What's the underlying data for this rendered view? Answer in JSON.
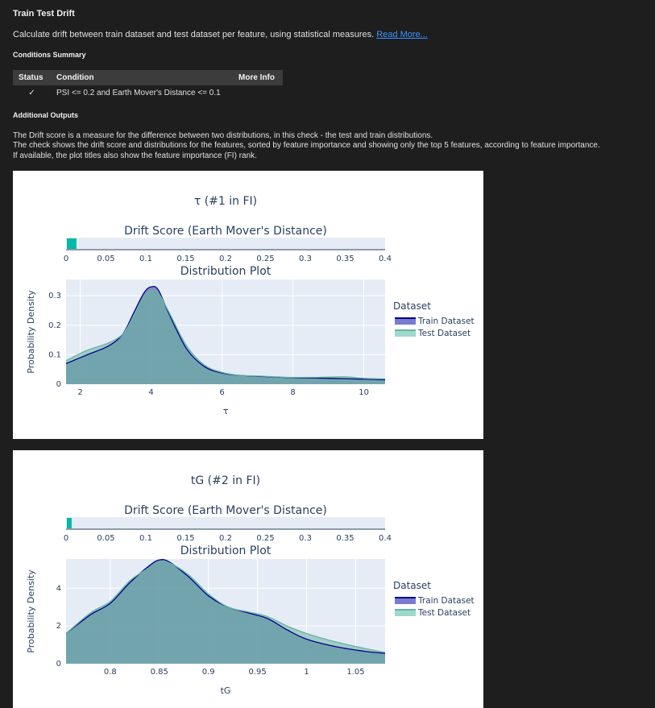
{
  "header": {
    "title": "Train Test Drift",
    "description": "Calculate drift between train dataset and test dataset per feature, using statistical measures.",
    "read_more": "Read More..."
  },
  "conditions": {
    "heading": "Conditions Summary",
    "columns": [
      "Status",
      "Condition",
      "More Info"
    ],
    "rows": [
      {
        "status": "✓",
        "condition": "PSI <= 0.2 and Earth Mover's Distance <= 0.1",
        "more_info": ""
      }
    ]
  },
  "additional": {
    "heading": "Additional Outputs",
    "lines": [
      "The Drift score is a measure for the difference between two distributions, in this check - the test and train distributions.",
      "The check shows the drift score and distributions for the features, sorted by feature importance and showing only the top 5 features, according to feature importance.",
      "If available, the plot titles also show the feature importance (FI) rank."
    ]
  },
  "colors": {
    "train": "#00008b",
    "test": "#69b3a2",
    "overlap_fill": "#5c86a3",
    "drift_bar": "#01b8aa",
    "plot_bg": "#e5ecf6"
  },
  "chart_data": [
    {
      "type": "area",
      "title": "τ (#1 in FI)",
      "drift": {
        "title": "Drift Score (Earth Mover's Distance)",
        "value": 0.012,
        "range": [
          0,
          0.4
        ],
        "ticks": [
          "0",
          "0.05",
          "0.1",
          "0.15",
          "0.2",
          "0.25",
          "0.3",
          "0.35",
          "0.4"
        ]
      },
      "dist_title": "Distribution Plot",
      "xlabel": "τ",
      "ylabel": "Probability Density",
      "xlim": [
        1.6,
        10.6
      ],
      "ylim": [
        0,
        0.355
      ],
      "xticks": [
        2,
        4,
        6,
        8,
        10
      ],
      "xticklabels": [
        "2",
        "4",
        "6",
        "8",
        "10"
      ],
      "yticks": [
        0,
        0.1,
        0.2,
        0.3
      ],
      "yticklabels": [
        "0",
        "0.1",
        "0.2",
        "0.3"
      ],
      "legend": {
        "title": "Dataset",
        "position": "right"
      },
      "series": [
        {
          "name": "Train Dataset",
          "x": [
            1.6,
            2.2,
            2.8,
            3.2,
            3.5,
            3.8,
            4.0,
            4.2,
            4.5,
            5.0,
            5.5,
            6.0,
            6.5,
            7.0,
            8.0,
            9.0,
            10.0,
            10.6
          ],
          "y": [
            0.07,
            0.1,
            0.13,
            0.17,
            0.24,
            0.31,
            0.33,
            0.32,
            0.24,
            0.12,
            0.06,
            0.038,
            0.03,
            0.027,
            0.022,
            0.02,
            0.017,
            0.015
          ]
        },
        {
          "name": "Test Dataset",
          "x": [
            1.6,
            2.2,
            2.8,
            3.2,
            3.5,
            3.8,
            4.0,
            4.2,
            4.5,
            5.0,
            5.5,
            6.0,
            6.5,
            7.0,
            8.0,
            9.0,
            9.5,
            10.0,
            10.6
          ],
          "y": [
            0.08,
            0.115,
            0.14,
            0.17,
            0.23,
            0.295,
            0.315,
            0.31,
            0.245,
            0.13,
            0.065,
            0.04,
            0.03,
            0.028,
            0.023,
            0.024,
            0.025,
            0.02,
            0.018
          ]
        }
      ]
    },
    {
      "type": "area",
      "title": "tG (#2 in FI)",
      "drift": {
        "title": "Drift Score (Earth Mover's Distance)",
        "value": 0.006,
        "range": [
          0,
          0.4
        ],
        "ticks": [
          "0",
          "0.05",
          "0.1",
          "0.15",
          "0.2",
          "0.25",
          "0.3",
          "0.35",
          "0.4"
        ]
      },
      "dist_title": "Distribution Plot",
      "xlabel": "tG",
      "ylabel": "Probability Density",
      "xlim": [
        0.755,
        1.08
      ],
      "ylim": [
        0,
        5.55
      ],
      "xticks": [
        0.8,
        0.85,
        0.9,
        0.95,
        1.0,
        1.05
      ],
      "xticklabels": [
        "0.8",
        "0.85",
        "0.9",
        "0.95",
        "1",
        "1.05"
      ],
      "yticks": [
        0,
        2,
        4
      ],
      "yticklabels": [
        "0",
        "2",
        "4"
      ],
      "legend": {
        "title": "Dataset",
        "position": "right"
      },
      "series": [
        {
          "name": "Train Dataset",
          "x": [
            0.755,
            0.78,
            0.8,
            0.82,
            0.84,
            0.85,
            0.86,
            0.88,
            0.9,
            0.92,
            0.94,
            0.96,
            0.98,
            1.0,
            1.03,
            1.06,
            1.08
          ],
          "y": [
            1.6,
            2.6,
            3.2,
            4.3,
            5.2,
            5.5,
            5.4,
            4.6,
            3.6,
            3.0,
            2.7,
            2.4,
            1.8,
            1.3,
            0.9,
            0.65,
            0.55
          ]
        },
        {
          "name": "Test Dataset",
          "x": [
            0.755,
            0.78,
            0.8,
            0.82,
            0.84,
            0.85,
            0.86,
            0.88,
            0.9,
            0.92,
            0.94,
            0.96,
            0.98,
            1.0,
            1.03,
            1.06,
            1.08
          ],
          "y": [
            1.6,
            2.7,
            3.3,
            4.4,
            5.1,
            5.4,
            5.35,
            4.7,
            3.7,
            3.0,
            2.75,
            2.5,
            2.0,
            1.6,
            1.15,
            0.8,
            0.6
          ]
        }
      ]
    }
  ]
}
